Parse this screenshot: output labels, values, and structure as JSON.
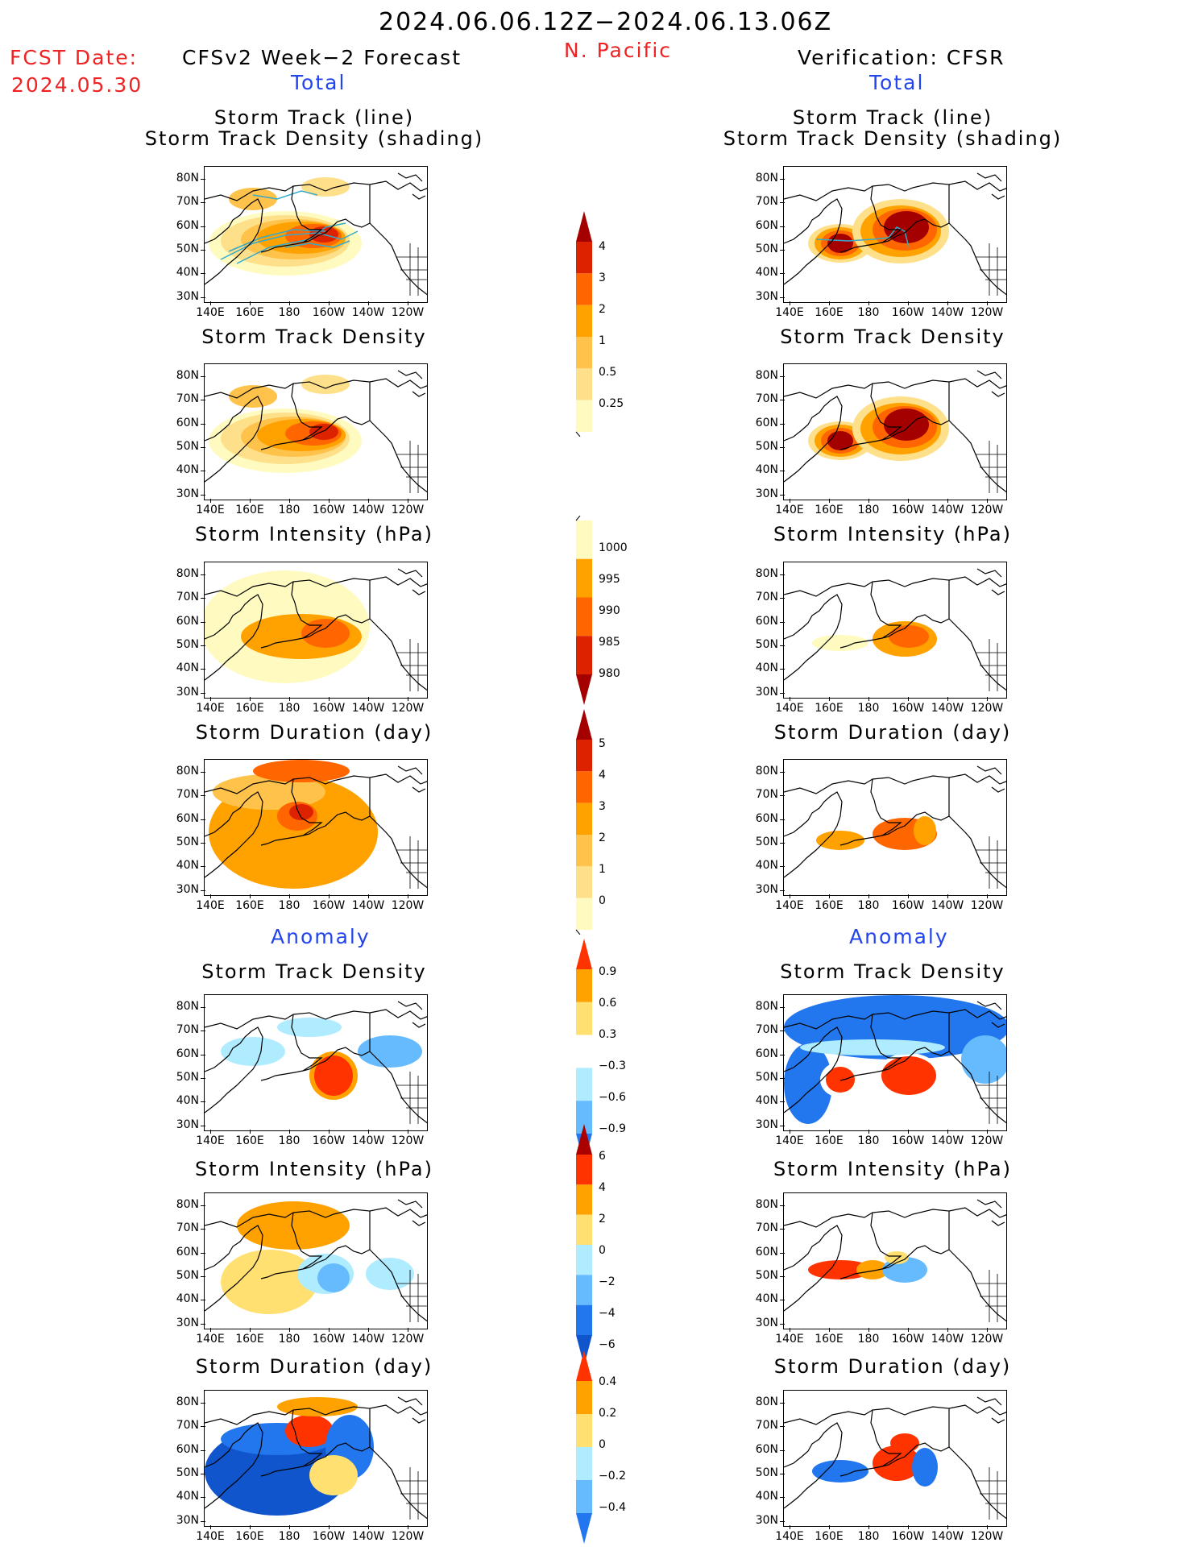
{
  "header": {
    "period": "2024.06.06.12Z−2024.06.13.06Z",
    "region": "N. Pacific",
    "fcst_date_label": "FCST Date:",
    "fcst_date_value": "2024.05.30",
    "left_title": "CFSv2 Week−2 Forecast",
    "right_title": "Verification: CFSR",
    "total_label": "Total",
    "anomaly_label": "Anomaly"
  },
  "panel_titles": {
    "track_line": "Storm Track (line)",
    "track_density_shading": "Storm Track Density (shading)",
    "track_density": "Storm Track Density",
    "intensity": "Storm Intensity (hPa)",
    "duration": "Storm Duration (day)"
  },
  "axes": {
    "lat_labels": [
      "80N",
      "70N",
      "60N",
      "50N",
      "40N",
      "30N"
    ],
    "lon_labels": [
      "140E",
      "160E",
      "180",
      "160W",
      "140W",
      "120W"
    ]
  },
  "colorbars": {
    "density": {
      "labels": [
        "4",
        "3",
        "2",
        "1",
        "0.5",
        "0.25"
      ],
      "colors": [
        "#a50000",
        "#dd2200",
        "#ff6600",
        "#ffa200",
        "#ffc24a",
        "#ffe08a",
        "#fffbc0"
      ]
    },
    "intensity": {
      "labels": [
        "1000",
        "995",
        "990",
        "985",
        "980"
      ],
      "colors": [
        "#fffbc0",
        "#ffa200",
        "#ff6600",
        "#dd2200",
        "#a50000"
      ]
    },
    "duration": {
      "labels": [
        "5",
        "4",
        "3",
        "2",
        "1",
        "0"
      ],
      "colors": [
        "#a50000",
        "#dd2200",
        "#ff6600",
        "#ffa200",
        "#ffc24a",
        "#ffe08a",
        "#fffbc0"
      ]
    },
    "anom_density": {
      "labels": [
        "0.9",
        "0.6",
        "0.3",
        "−0.3",
        "−0.6",
        "−0.9"
      ],
      "colors": [
        "#ff3300",
        "#ffa200",
        "#ffe070",
        "#ffffff",
        "#b0ecff",
        "#66bbff",
        "#2277ee"
      ]
    },
    "anom_intensity": {
      "labels": [
        "6",
        "4",
        "2",
        "0",
        "−2",
        "−4",
        "−6"
      ],
      "colors": [
        "#aa0000",
        "#ff3300",
        "#ffa200",
        "#ffe070",
        "#b0ecff",
        "#66bbff",
        "#2277ee",
        "#1155cc"
      ]
    },
    "anom_duration": {
      "labels": [
        "0.4",
        "0.2",
        "0",
        "−0.2",
        "−0.4"
      ],
      "colors": [
        "#ff3300",
        "#ffa200",
        "#ffe070",
        "#b0ecff",
        "#66bbff",
        "#2277ee"
      ]
    }
  }
}
